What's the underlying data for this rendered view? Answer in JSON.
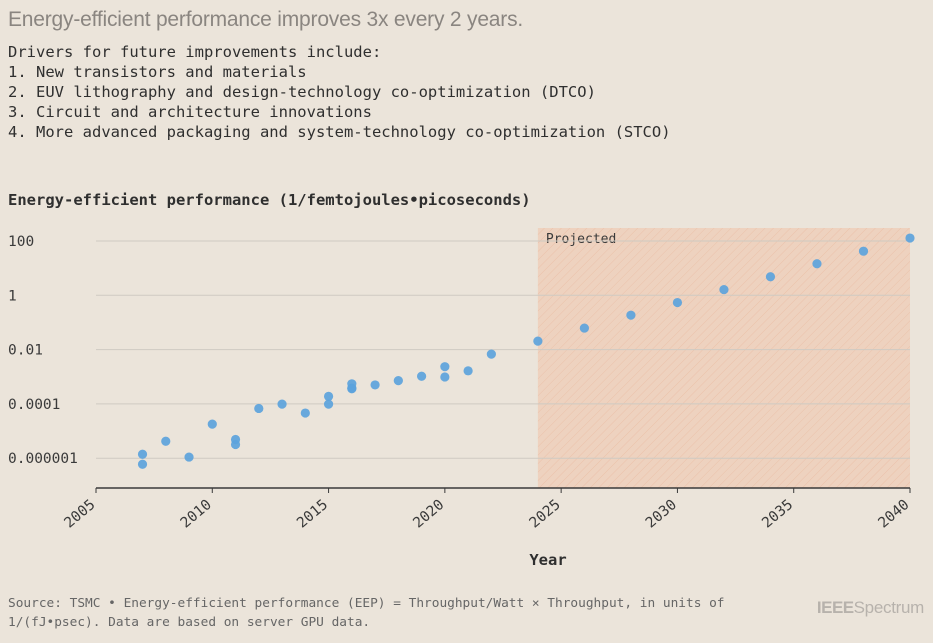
{
  "headline": "Energy-efficient performance improves 3x every 2 years.",
  "drivers": {
    "intro": "Drivers for future improvements include:",
    "items": [
      "1. New transistors and materials",
      "2. EUV lithography and design-technology co-optimization (DTCO)",
      "3. Circuit and architecture innovations",
      "4. More advanced packaging and system-technology co-optimization (STCO)"
    ]
  },
  "chart_data": {
    "type": "scatter",
    "title": "Energy-efficient performance (1/femtojoules•picoseconds)",
    "xlabel": "Year",
    "ylabel": "",
    "xlim": [
      2005,
      2040
    ],
    "x_ticks": [
      "2005",
      "2010",
      "2015",
      "2020",
      "2025",
      "2030",
      "2035",
      "2040"
    ],
    "y_scale": "log",
    "ylim": [
      8e-08,
      300
    ],
    "y_ticks": [
      "100",
      "1",
      "0.01",
      "0.0001",
      "0.000001"
    ],
    "grid": true,
    "projected_region": {
      "label": "Projected",
      "from": 2024,
      "to": 2040
    },
    "point_color": "#5ca3dc",
    "projected_fill": "#f1c3aa",
    "series": [
      {
        "name": "",
        "points": [
          [
            2007,
            6e-07
          ],
          [
            2007,
            1.4e-06
          ],
          [
            2008,
            4.2e-06
          ],
          [
            2009,
            1.1e-06
          ],
          [
            2010,
            1.8e-05
          ],
          [
            2011,
            3.2e-06
          ],
          [
            2011,
            4.9e-06
          ],
          [
            2012,
            6.8e-05
          ],
          [
            2013,
            9.8e-05
          ],
          [
            2014,
            4.6e-05
          ],
          [
            2015,
            9.8e-05
          ],
          [
            2015,
            0.00019
          ],
          [
            2016,
            0.00038
          ],
          [
            2016,
            0.00055
          ],
          [
            2016,
            0.00036
          ],
          [
            2017,
            0.0005
          ],
          [
            2018,
            0.00072
          ],
          [
            2019,
            0.00104
          ],
          [
            2020,
            0.00235
          ],
          [
            2020,
            0.00098
          ],
          [
            2021,
            0.00165
          ],
          [
            2022,
            0.0068
          ],
          [
            2024,
            0.0205
          ],
          [
            2026,
            0.062
          ],
          [
            2028,
            0.185
          ],
          [
            2030,
            0.54
          ],
          [
            2032,
            1.62
          ],
          [
            2034,
            4.8
          ],
          [
            2036,
            14.5
          ],
          [
            2038,
            42
          ],
          [
            2040,
            128
          ]
        ]
      }
    ]
  },
  "footer": {
    "source_line1": "Source: TSMC • Energy-efficient performance (EEP) = Throughput/Watt × Throughput, in units of",
    "source_line2": "1/(fJ•psec). Data are based on server GPU data."
  },
  "logo": {
    "part1": "IEEE",
    "part2": "Spectrum"
  }
}
